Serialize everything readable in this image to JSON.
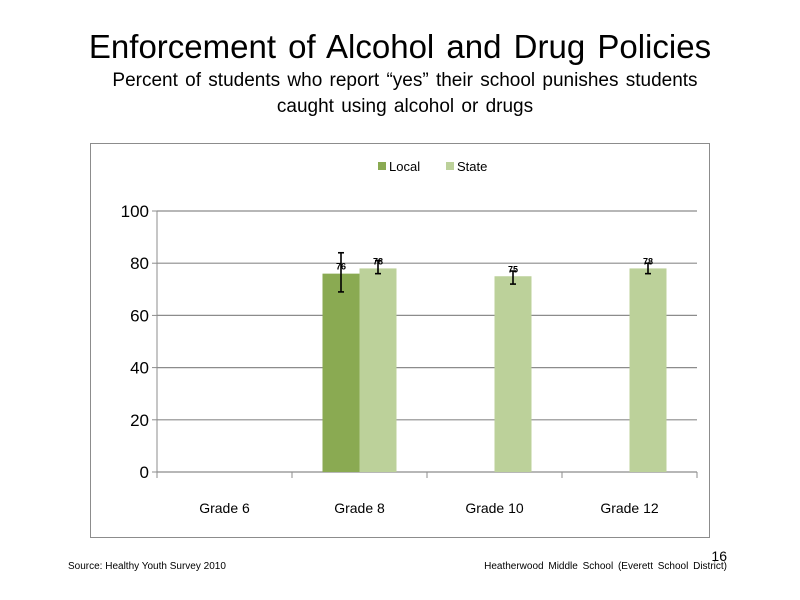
{
  "slide": {
    "title": "Enforcement of Alcohol and Drug Policies",
    "subtitle_line1": "Percent of students who report “yes” their school punishes students",
    "subtitle_line2": "caught using alcohol or drugs",
    "slide_number": "16",
    "source": "Source: Healthy Youth Survey 2010",
    "school": "Heatherwood Middle  School (Everett School District)"
  },
  "chart_data": {
    "type": "bar",
    "categories": [
      "Grade 6",
      "Grade 8",
      "Grade 10",
      "Grade 12"
    ],
    "series": [
      {
        "name": "Local",
        "color": "#8aaa52",
        "values": [
          null,
          76,
          null,
          null
        ],
        "error_low": [
          null,
          69,
          null,
          null
        ],
        "error_high": [
          null,
          84,
          null,
          null
        ],
        "labels": [
          "",
          "76",
          "",
          ""
        ]
      },
      {
        "name": "State",
        "color": "#bcd19a",
        "values": [
          null,
          78,
          75,
          78
        ],
        "error_low": [
          null,
          76,
          72,
          76
        ],
        "error_high": [
          null,
          81,
          77,
          80
        ],
        "labels": [
          "",
          "78",
          "75",
          "78"
        ]
      }
    ],
    "ylim": [
      0,
      100
    ],
    "yticks": [
      0,
      20,
      40,
      60,
      80,
      100
    ],
    "grid": true,
    "legend": "top"
  }
}
